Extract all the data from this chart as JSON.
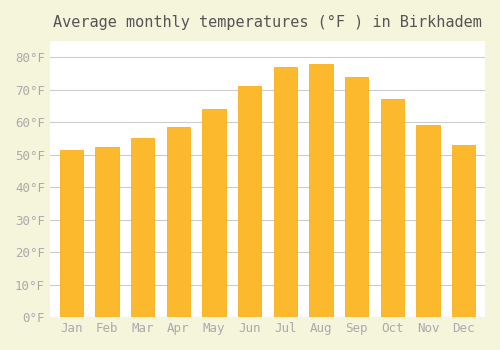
{
  "title": "Average monthly temperatures (°F ) in Birkhadem",
  "months": [
    "Jan",
    "Feb",
    "Mar",
    "Apr",
    "May",
    "Jun",
    "Jul",
    "Aug",
    "Sep",
    "Oct",
    "Nov",
    "Dec"
  ],
  "values": [
    51.5,
    52.5,
    55.0,
    58.5,
    64.0,
    71.0,
    77.0,
    78.0,
    74.0,
    67.0,
    59.0,
    53.0
  ],
  "bar_color_main": "#FDB92E",
  "bar_color_edge": "#F7A800",
  "background_color": "#F5F5DC",
  "plot_bg_color": "#FFFFFF",
  "grid_color": "#CCCCCC",
  "ytick_labels": [
    "0°F",
    "10°F",
    "20°F",
    "30°F",
    "40°F",
    "50°F",
    "60°F",
    "70°F",
    "80°F"
  ],
  "ytick_values": [
    0,
    10,
    20,
    30,
    40,
    50,
    60,
    70,
    80
  ],
  "ylim": [
    0,
    85
  ],
  "title_fontsize": 11,
  "tick_fontsize": 9,
  "tick_color": "#AAAAAA",
  "title_color": "#555555"
}
